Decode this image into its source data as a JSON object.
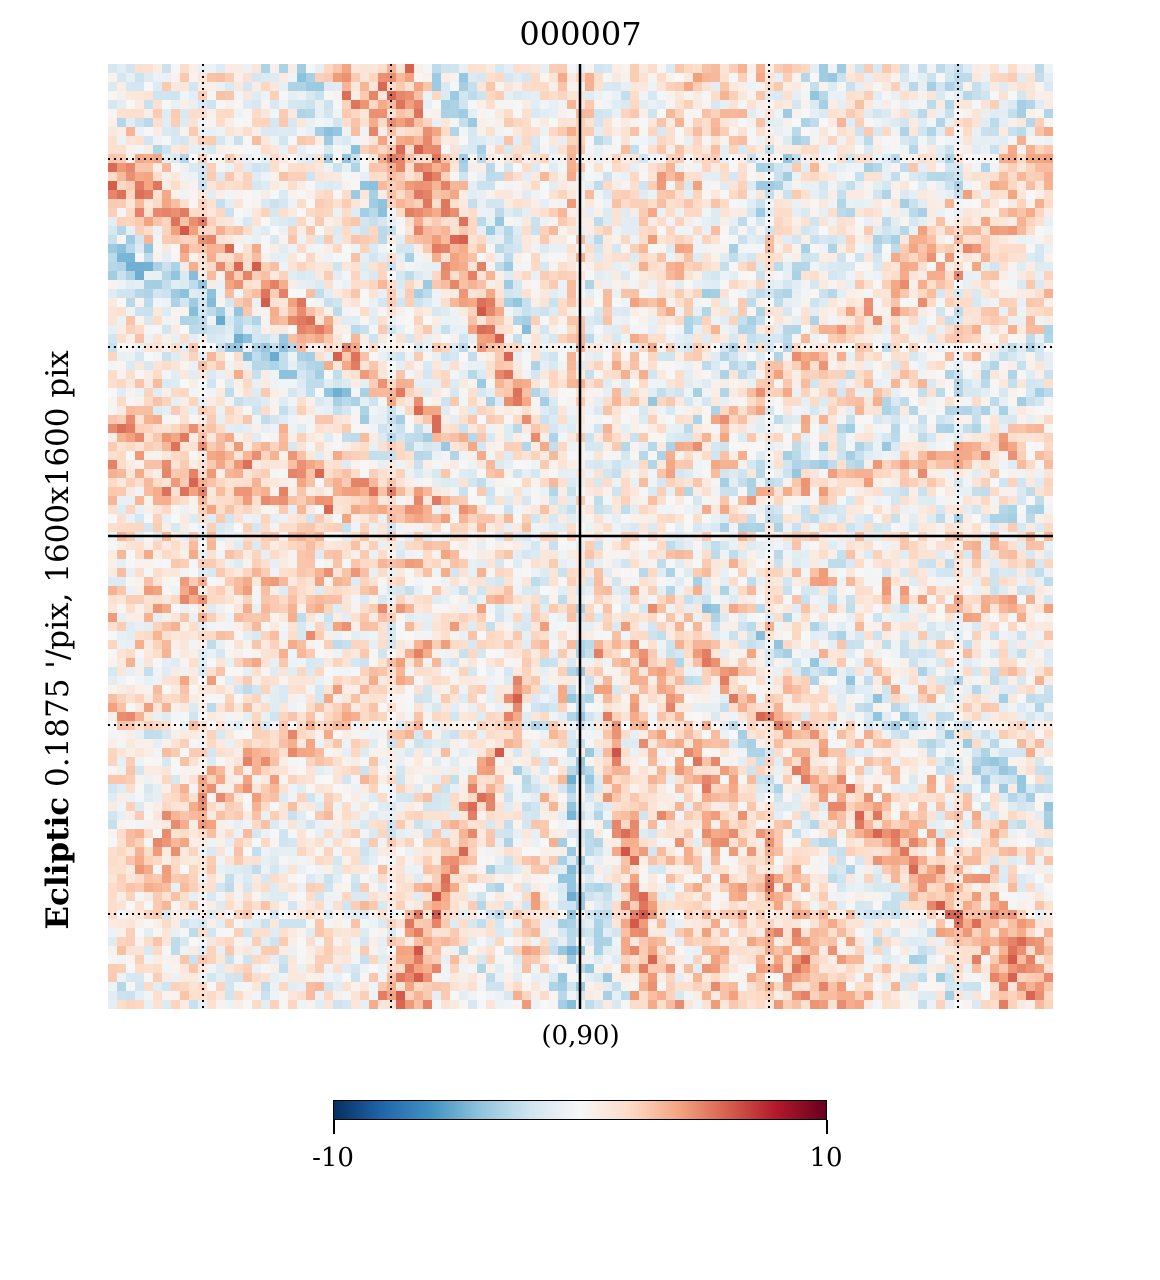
{
  "chart_data": {
    "type": "heatmap",
    "title": "000007",
    "projection_label": "Ecliptic",
    "resolution_label": "0.1875 '/pix,   1600x1600 pix",
    "center_label": "(0,90)",
    "colormap": "RdBu_r",
    "vmin": -10,
    "vmax": 10,
    "colorbar": {
      "min_label": "-10",
      "max_label": "10",
      "colors": [
        "#053061",
        "#2166ac",
        "#4393c3",
        "#92c5de",
        "#d1e5f0",
        "#f7f7f7",
        "#fddbc7",
        "#f4a582",
        "#d6604d",
        "#b2182b",
        "#67001f"
      ]
    },
    "graticule": {
      "style": "dotted",
      "axes_style": "solid"
    }
  }
}
